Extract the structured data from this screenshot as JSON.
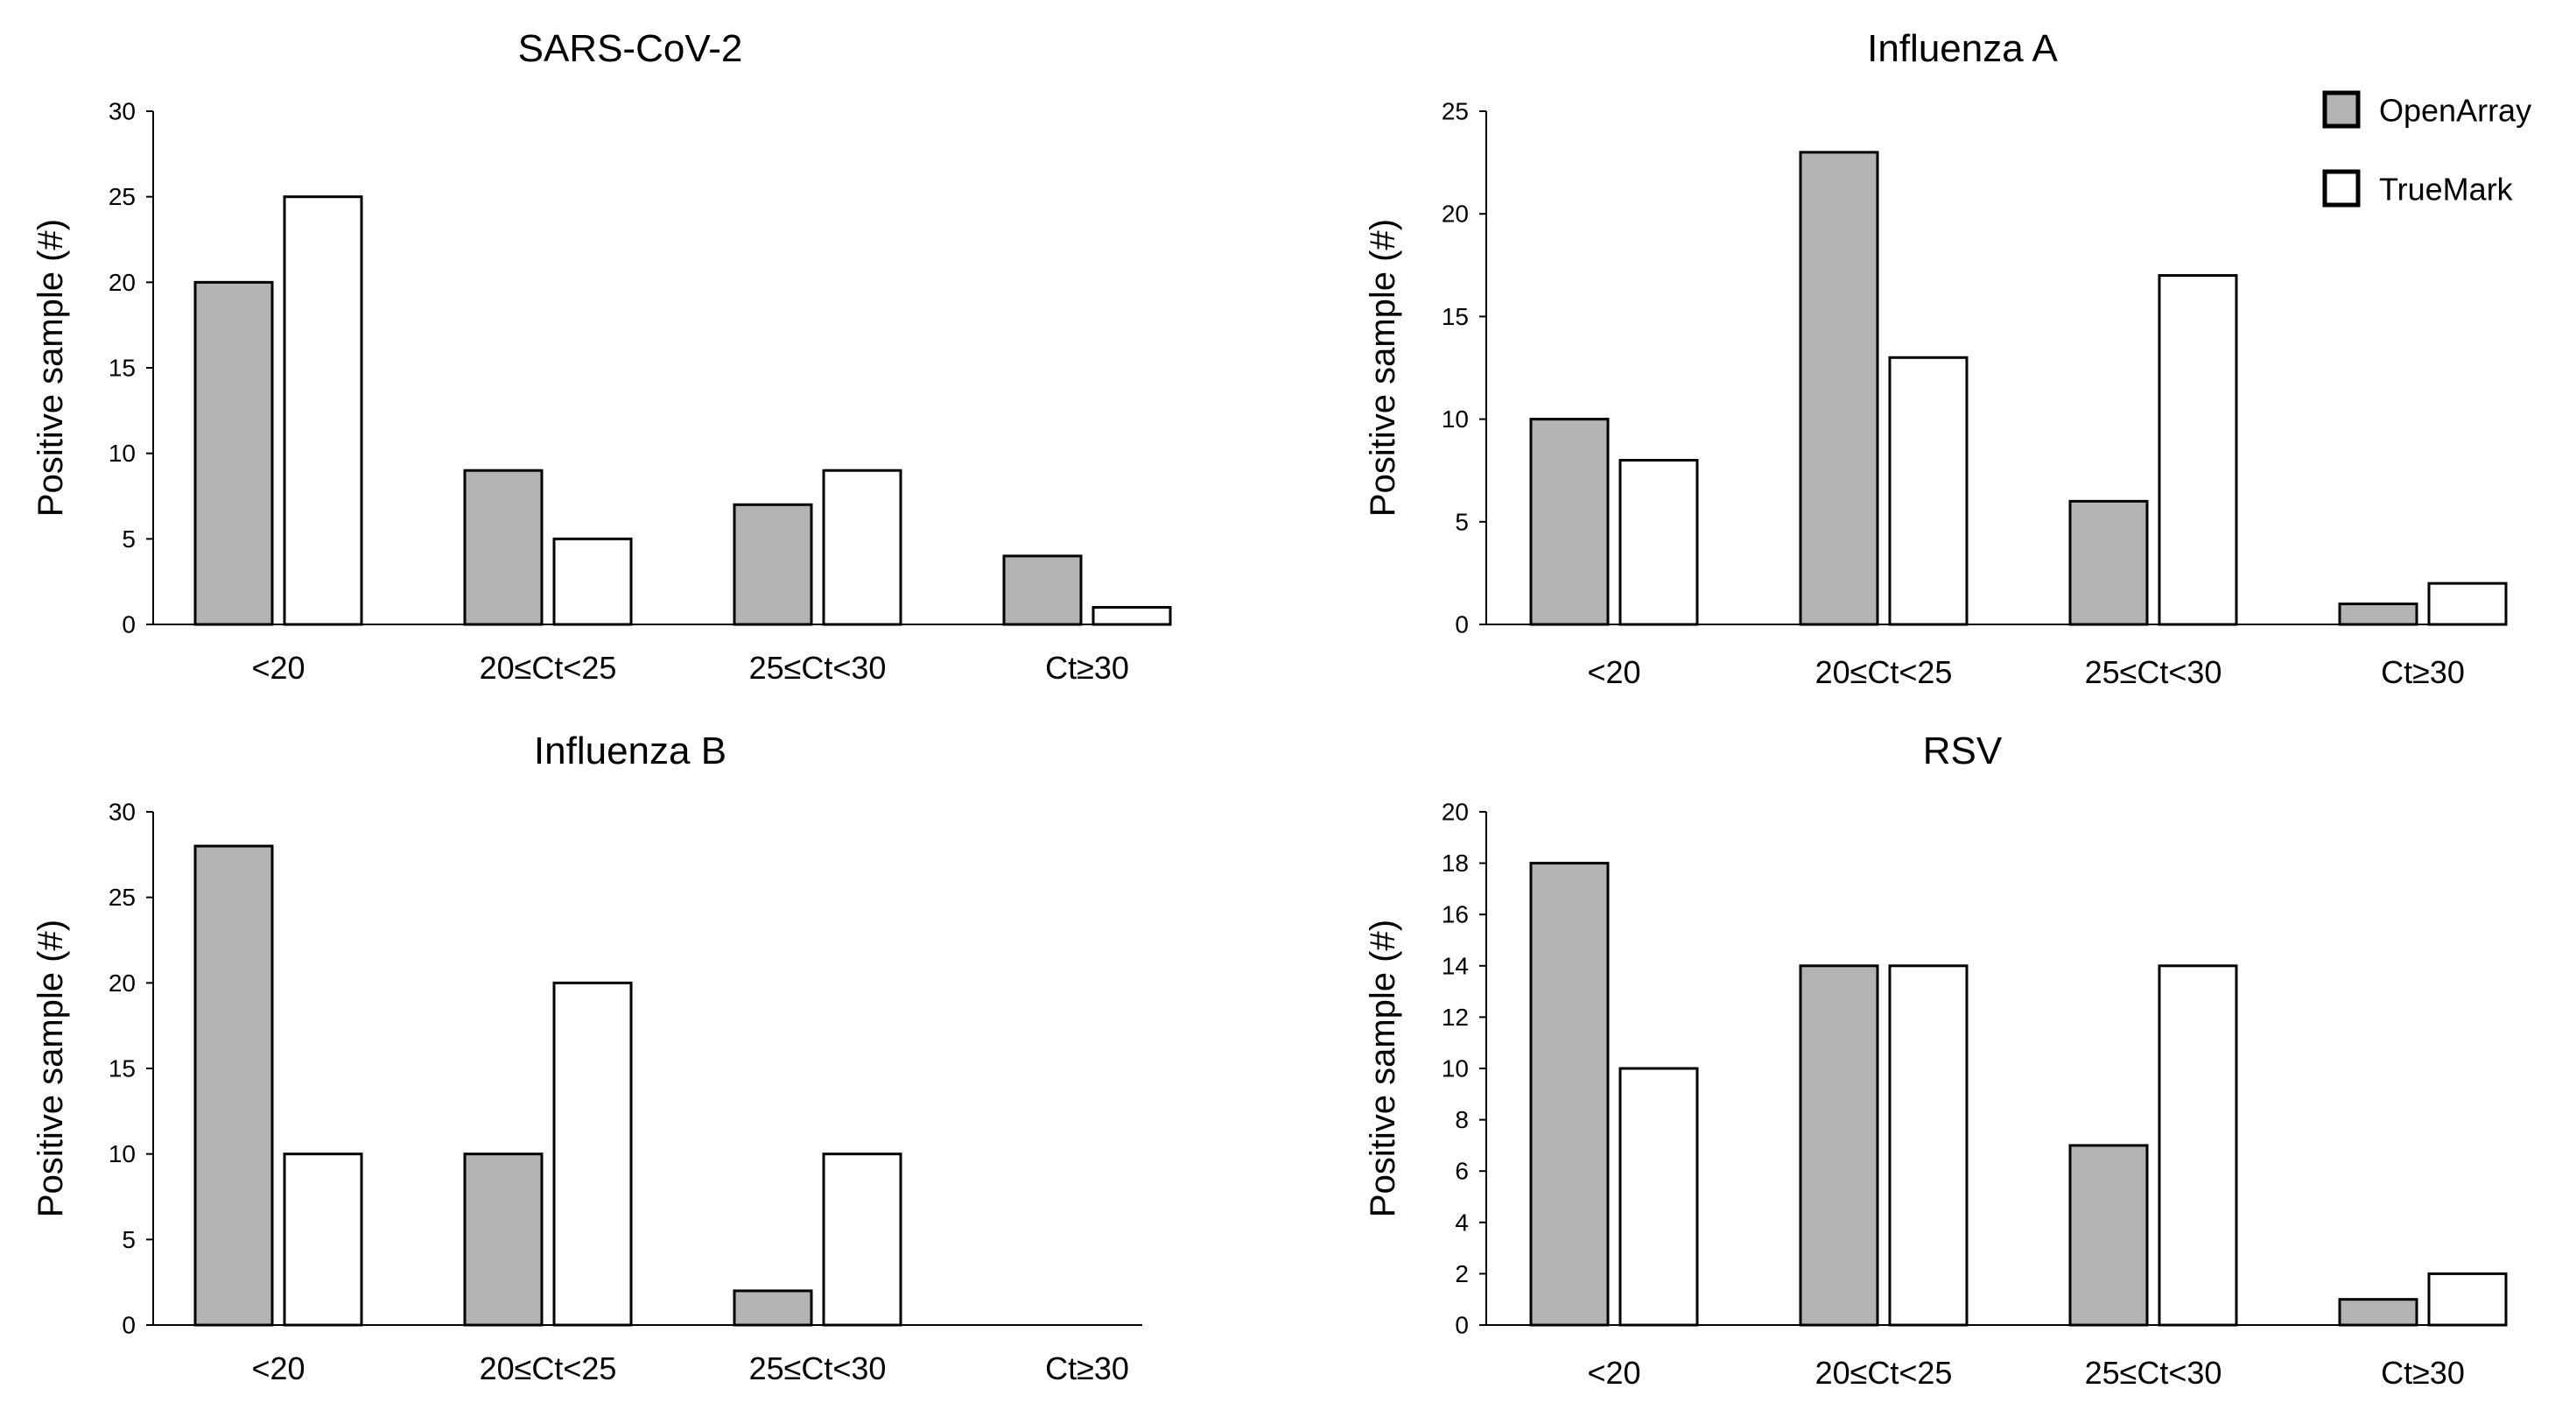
{
  "colors": {
    "openarray": "#b3b3b3",
    "truemark": "#ffffff",
    "stroke": "#000000"
  },
  "legend": [
    {
      "name": "OpenArray",
      "color": "#b3b3b3"
    },
    {
      "name": "TrueMark",
      "color": "#ffffff"
    }
  ],
  "chart_data": [
    {
      "type": "bar",
      "title": "SARS-CoV-2",
      "ylabel": "Positive sample (#)",
      "categories": [
        "<20",
        "20≤Ct<25",
        "25≤Ct<30",
        "Ct≥30"
      ],
      "ylim": [
        0,
        30
      ],
      "yticks": [
        0,
        5,
        10,
        15,
        20,
        25,
        30
      ],
      "series": [
        {
          "name": "OpenArray",
          "values": [
            20,
            9,
            7,
            4
          ]
        },
        {
          "name": "TrueMark",
          "values": [
            25,
            5,
            9,
            1
          ]
        }
      ]
    },
    {
      "type": "bar",
      "title": "Influenza A",
      "ylabel": "Positive sample (#)",
      "categories": [
        "<20",
        "20≤Ct<25",
        "25≤Ct<30",
        "Ct≥30"
      ],
      "ylim": [
        0,
        25
      ],
      "yticks": [
        0,
        5,
        10,
        15,
        20,
        25
      ],
      "series": [
        {
          "name": "OpenArray",
          "values": [
            10,
            23,
            6,
            1
          ]
        },
        {
          "name": "TrueMark",
          "values": [
            8,
            13,
            17,
            2
          ]
        }
      ]
    },
    {
      "type": "bar",
      "title": "Influenza B",
      "ylabel": "Positive sample (#)",
      "categories": [
        "<20",
        "20≤Ct<25",
        "25≤Ct<30",
        "Ct≥30"
      ],
      "ylim": [
        0,
        30
      ],
      "yticks": [
        0,
        5,
        10,
        15,
        20,
        25,
        30
      ],
      "series": [
        {
          "name": "OpenArray",
          "values": [
            28,
            10,
            2,
            0
          ]
        },
        {
          "name": "TrueMark",
          "values": [
            10,
            20,
            10,
            0
          ]
        }
      ]
    },
    {
      "type": "bar",
      "title": "RSV",
      "ylabel": "Positive sample (#)",
      "categories": [
        "<20",
        "20≤Ct<25",
        "25≤Ct<30",
        "Ct≥30"
      ],
      "ylim": [
        0,
        20
      ],
      "yticks": [
        0,
        2,
        4,
        6,
        8,
        10,
        12,
        14,
        16,
        18,
        20
      ],
      "series": [
        {
          "name": "OpenArray",
          "values": [
            18,
            14,
            7,
            1
          ]
        },
        {
          "name": "TrueMark",
          "values": [
            10,
            14,
            14,
            2
          ]
        }
      ]
    }
  ]
}
